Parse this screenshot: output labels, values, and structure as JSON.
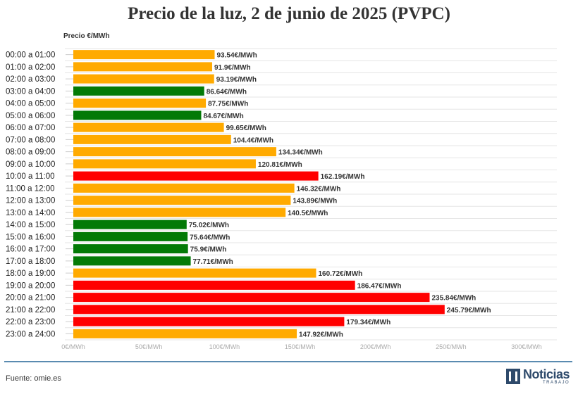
{
  "chart_data": {
    "type": "bar",
    "orientation": "horizontal",
    "title": "Precio de la luz, 2 de junio de 2025 (PVPC)",
    "ylabel": "Precio €/MWh",
    "xlim": [
      0,
      300
    ],
    "xticks": [
      0,
      50,
      100,
      150,
      200,
      250,
      300
    ],
    "tick_suffix": "€/MWh",
    "value_suffix": "€/MWh",
    "grid": true,
    "categories": [
      "00:00 a 01:00",
      "01:00 a 02:00",
      "02:00 a 03:00",
      "03:00 a 04:00",
      "04:00 a 05:00",
      "05:00 a 06:00",
      "06:00 a 07:00",
      "07:00 a 08:00",
      "08:00 a 09:00",
      "09:00 a 10:00",
      "10:00 a 11:00",
      "11:00 a 12:00",
      "12:00 a 13:00",
      "13:00 a 14:00",
      "14:00 a 15:00",
      "15:00 a 16:00",
      "16:00 a 17:00",
      "17:00 a 18:00",
      "18:00 a 19:00",
      "19:00 a 20:00",
      "20:00 a 21:00",
      "21:00 a 22:00",
      "22:00 a 23:00",
      "23:00 a 24:00"
    ],
    "values": [
      93.54,
      91.9,
      93.19,
      86.64,
      87.75,
      84.67,
      99.65,
      104.4,
      134.34,
      120.81,
      162.19,
      146.32,
      143.89,
      140.5,
      75.02,
      75.64,
      75.9,
      77.71,
      160.72,
      186.47,
      235.84,
      245.79,
      179.34,
      147.92
    ],
    "value_labels": [
      "93.54",
      "91.9",
      "93.19",
      "86.64",
      "87.75",
      "84.67",
      "99.65",
      "104.4",
      "134.34",
      "120.81",
      "162.19",
      "146.32",
      "143.89",
      "140.5",
      "75.02",
      "75.64",
      "75.9",
      "77.71",
      "160.72",
      "186.47",
      "235.84",
      "245.79",
      "179.34",
      "147.92"
    ],
    "levels": [
      "medio",
      "medio",
      "medio",
      "bajo",
      "medio",
      "bajo",
      "medio",
      "medio",
      "medio",
      "medio",
      "alto",
      "medio",
      "medio",
      "medio",
      "bajo",
      "bajo",
      "bajo",
      "bajo",
      "medio",
      "alto",
      "alto",
      "alto",
      "alto",
      "medio"
    ],
    "colors": {
      "bajo": "#037a06",
      "medio": "#ffaa00",
      "alto": "#ff0000"
    }
  },
  "footer": {
    "source": "Fuente: omie.es",
    "logo_text": "Noticias",
    "logo_sub": "TRABAJO"
  }
}
